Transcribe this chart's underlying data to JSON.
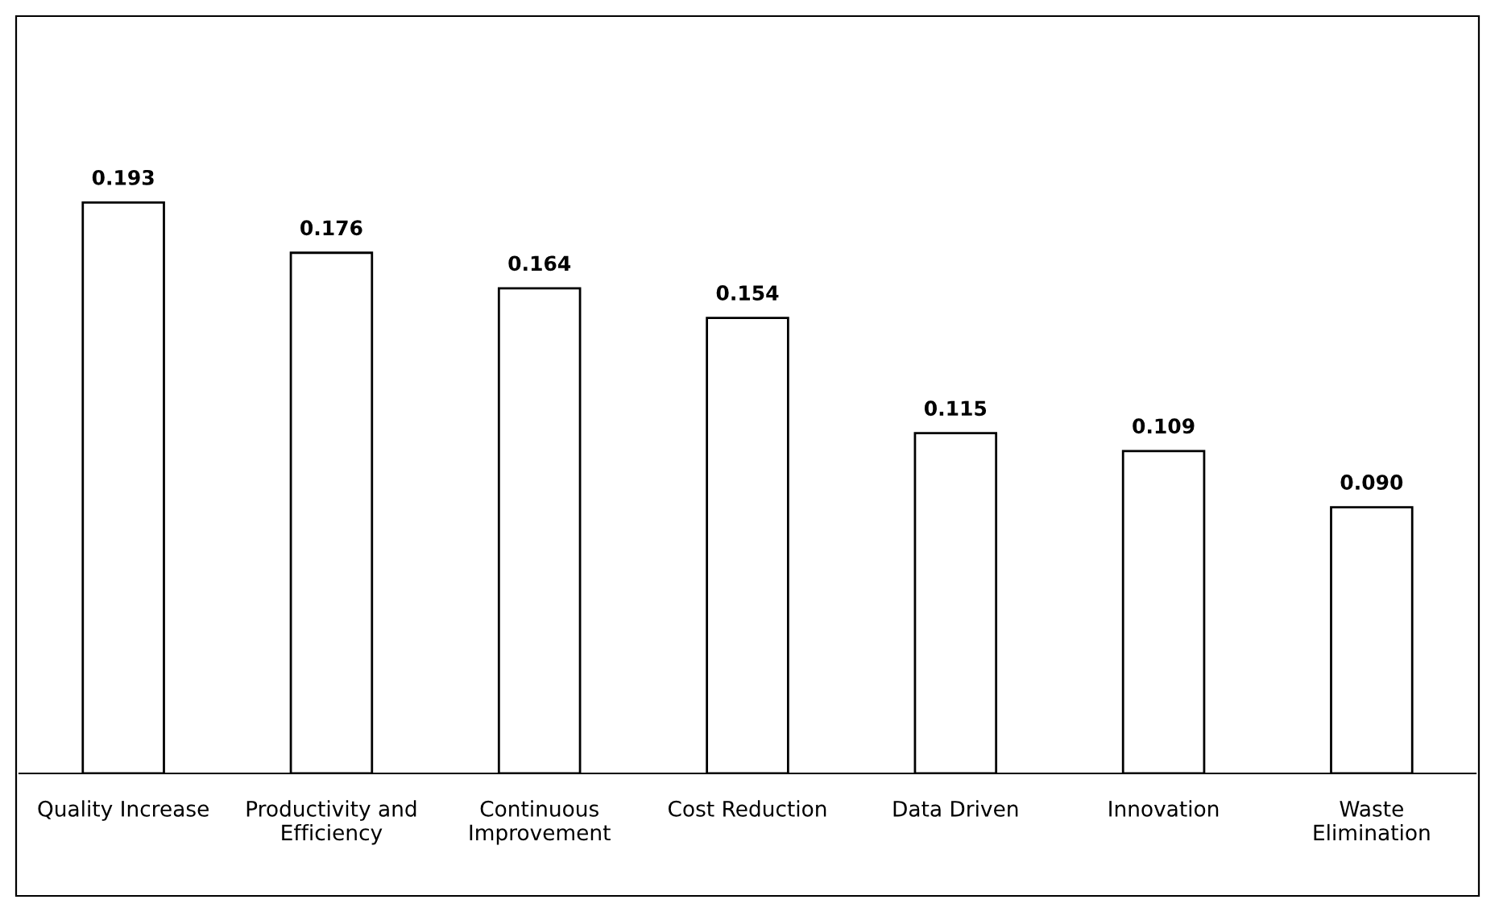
{
  "chart_data": {
    "type": "bar",
    "categories": [
      "Quality Increase",
      "Productivity and\nEfficiency",
      "Continuous\nImprovement",
      "Cost Reduction",
      "Data Driven",
      "Innovation",
      "Waste\nElimination"
    ],
    "values": [
      0.193,
      0.176,
      0.164,
      0.154,
      0.115,
      0.109,
      0.09
    ],
    "value_labels": [
      "0.193",
      "0.176",
      "0.164",
      "0.154",
      "0.115",
      "0.109",
      "0.090"
    ],
    "color": "#ffffff",
    "ylim": [
      0,
      0.256
    ],
    "tick_labels": "x",
    "grid": false,
    "legend": false
  }
}
